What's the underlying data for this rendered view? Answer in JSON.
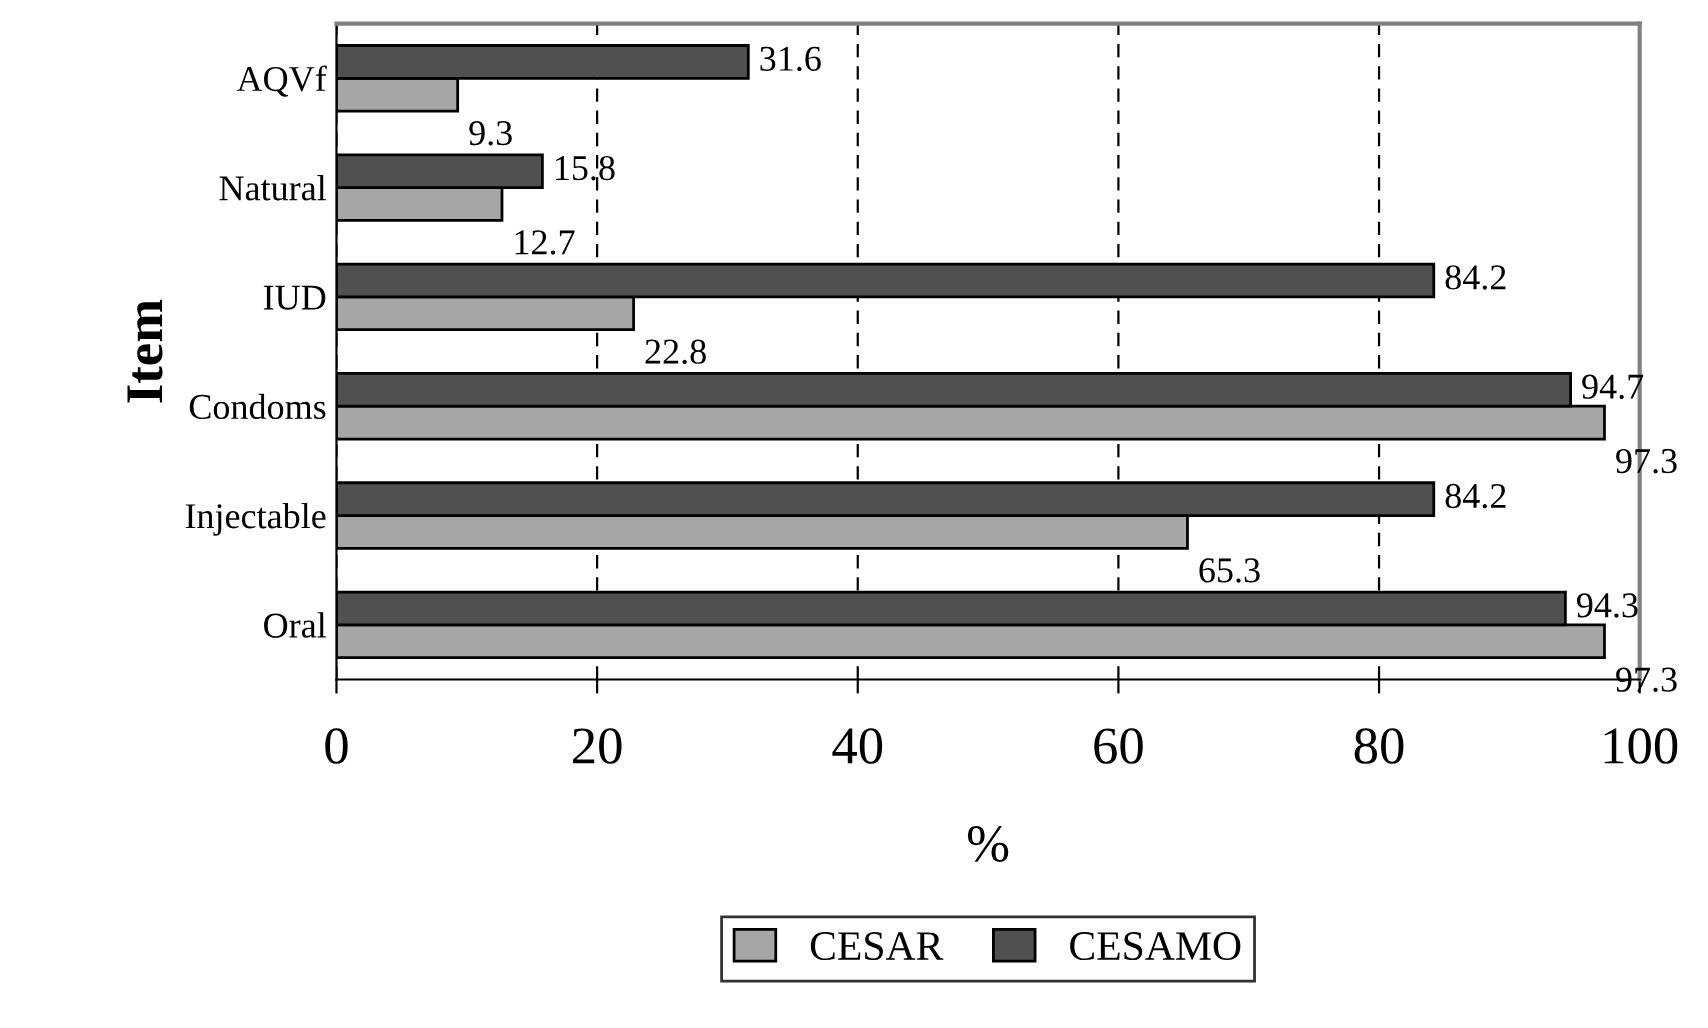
{
  "chart_data": {
    "type": "bar",
    "orientation": "horizontal",
    "xlabel": "%",
    "ylabel": "Item",
    "categories": [
      "AQVf",
      "Natural",
      "IUD",
      "Condoms",
      "Injectable",
      "Oral"
    ],
    "series": [
      {
        "name": "CESAR",
        "color": "#a6a6a6",
        "values": [
          9.3,
          12.7,
          22.8,
          97.3,
          65.3,
          97.3
        ]
      },
      {
        "name": "CESAMO",
        "color": "#505050",
        "values": [
          31.6,
          15.8,
          84.2,
          94.7,
          84.2,
          94.3
        ]
      }
    ],
    "xlim": [
      0,
      100
    ],
    "xticks": [
      0,
      20,
      40,
      60,
      80,
      100
    ],
    "grid": "x",
    "legend": "bottom",
    "data_labels": true
  }
}
